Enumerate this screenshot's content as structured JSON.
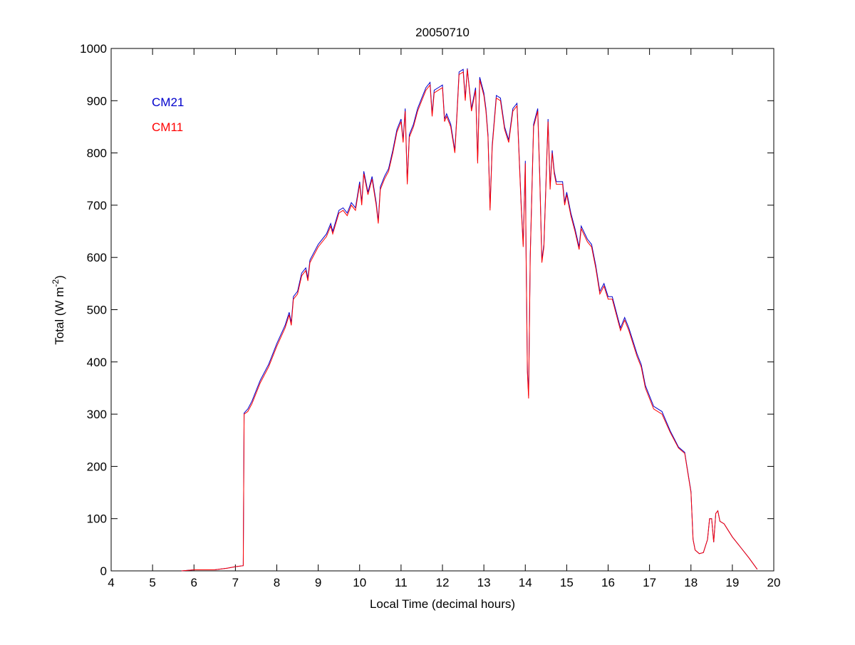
{
  "chart_data": {
    "type": "line",
    "title": "20050710",
    "xlabel": "Local Time (decimal hours)",
    "ylabel": "Total (W m",
    "ylabel_sup": "-2",
    "ylabel_close": ")",
    "xlim": [
      4,
      20
    ],
    "ylim": [
      0,
      1000
    ],
    "xticks": [
      4,
      5,
      6,
      7,
      8,
      9,
      10,
      11,
      12,
      13,
      14,
      15,
      16,
      17,
      18,
      19,
      20
    ],
    "yticks": [
      0,
      100,
      200,
      300,
      400,
      500,
      600,
      700,
      800,
      900,
      1000
    ],
    "grid": false,
    "legend_placement": "top-left",
    "x": [
      5.7,
      6.0,
      6.5,
      6.8,
      7.0,
      7.19,
      7.21,
      7.3,
      7.4,
      7.6,
      7.8,
      8.0,
      8.2,
      8.3,
      8.35,
      8.4,
      8.5,
      8.6,
      8.7,
      8.75,
      8.8,
      9.0,
      9.2,
      9.3,
      9.35,
      9.5,
      9.6,
      9.7,
      9.8,
      9.9,
      10.0,
      10.05,
      10.1,
      10.2,
      10.3,
      10.4,
      10.45,
      10.5,
      10.6,
      10.7,
      10.8,
      10.9,
      11.0,
      11.05,
      11.1,
      11.15,
      11.2,
      11.3,
      11.4,
      11.5,
      11.6,
      11.7,
      11.75,
      11.8,
      11.9,
      12.0,
      12.05,
      12.1,
      12.2,
      12.3,
      12.35,
      12.4,
      12.5,
      12.55,
      12.6,
      12.7,
      12.8,
      12.85,
      12.9,
      13.0,
      13.05,
      13.1,
      13.15,
      13.2,
      13.3,
      13.4,
      13.5,
      13.6,
      13.7,
      13.8,
      13.9,
      13.95,
      14.0,
      14.02,
      14.05,
      14.08,
      14.12,
      14.2,
      14.3,
      14.35,
      14.4,
      14.45,
      14.55,
      14.6,
      14.65,
      14.7,
      14.75,
      14.9,
      14.95,
      15.0,
      15.1,
      15.2,
      15.3,
      15.35,
      15.5,
      15.6,
      15.7,
      15.8,
      15.9,
      16.0,
      16.1,
      16.2,
      16.3,
      16.4,
      16.5,
      16.7,
      16.8,
      16.9,
      17.0,
      17.1,
      17.3,
      17.5,
      17.7,
      17.85,
      17.9,
      18.0,
      18.05,
      18.1,
      18.2,
      18.3,
      18.4,
      18.45,
      18.5,
      18.55,
      18.6,
      18.65,
      18.7,
      18.8,
      19.0,
      19.2,
      19.4,
      19.6
    ],
    "series": [
      {
        "name": "CM21",
        "color": "#0000cc",
        "values": [
          0,
          2,
          2,
          5,
          8,
          10,
          302,
          310,
          325,
          365,
          395,
          435,
          470,
          495,
          475,
          525,
          535,
          570,
          580,
          560,
          595,
          625,
          645,
          665,
          650,
          690,
          695,
          685,
          705,
          695,
          745,
          705,
          765,
          725,
          755,
          705,
          670,
          735,
          755,
          770,
          805,
          845,
          865,
          825,
          885,
          745,
          835,
          855,
          885,
          905,
          925,
          935,
          875,
          920,
          925,
          930,
          865,
          875,
          855,
          805,
          875,
          955,
          960,
          905,
          962,
          885,
          925,
          785,
          945,
          915,
          885,
          835,
          695,
          815,
          910,
          905,
          850,
          825,
          885,
          895,
          705,
          625,
          785,
          605,
          385,
          335,
          605,
          855,
          885,
          755,
          595,
          625,
          865,
          735,
          805,
          765,
          745,
          745,
          705,
          725,
          685,
          655,
          620,
          660,
          635,
          625,
          585,
          535,
          550,
          525,
          525,
          495,
          465,
          485,
          465,
          415,
          395,
          355,
          335,
          315,
          305,
          268,
          237,
          227,
          202,
          152,
          61,
          40,
          33,
          35,
          60,
          100,
          100,
          55,
          110,
          115,
          95,
          90,
          65,
          45,
          25,
          3
        ]
      },
      {
        "name": "CM11",
        "color": "#ff0000",
        "values": [
          0,
          2,
          2,
          5,
          8,
          10,
          300,
          305,
          320,
          360,
          390,
          430,
          465,
          490,
          470,
          520,
          530,
          565,
          575,
          555,
          590,
          620,
          640,
          660,
          645,
          685,
          690,
          680,
          700,
          690,
          740,
          700,
          760,
          720,
          750,
          700,
          665,
          730,
          750,
          765,
          800,
          840,
          860,
          820,
          880,
          740,
          830,
          850,
          880,
          900,
          920,
          930,
          870,
          915,
          920,
          925,
          860,
          870,
          850,
          800,
          870,
          950,
          955,
          900,
          960,
          880,
          920,
          780,
          940,
          910,
          880,
          830,
          690,
          810,
          905,
          900,
          845,
          820,
          880,
          890,
          700,
          620,
          780,
          600,
          380,
          330,
          600,
          850,
          880,
          750,
          590,
          620,
          860,
          730,
          800,
          760,
          740,
          740,
          700,
          720,
          680,
          650,
          615,
          655,
          630,
          620,
          580,
          530,
          545,
          520,
          520,
          490,
          460,
          480,
          460,
          410,
          390,
          350,
          330,
          310,
          300,
          265,
          235,
          225,
          200,
          150,
          60,
          40,
          33,
          35,
          60,
          100,
          100,
          55,
          110,
          115,
          95,
          90,
          65,
          45,
          25,
          3
        ]
      }
    ]
  }
}
